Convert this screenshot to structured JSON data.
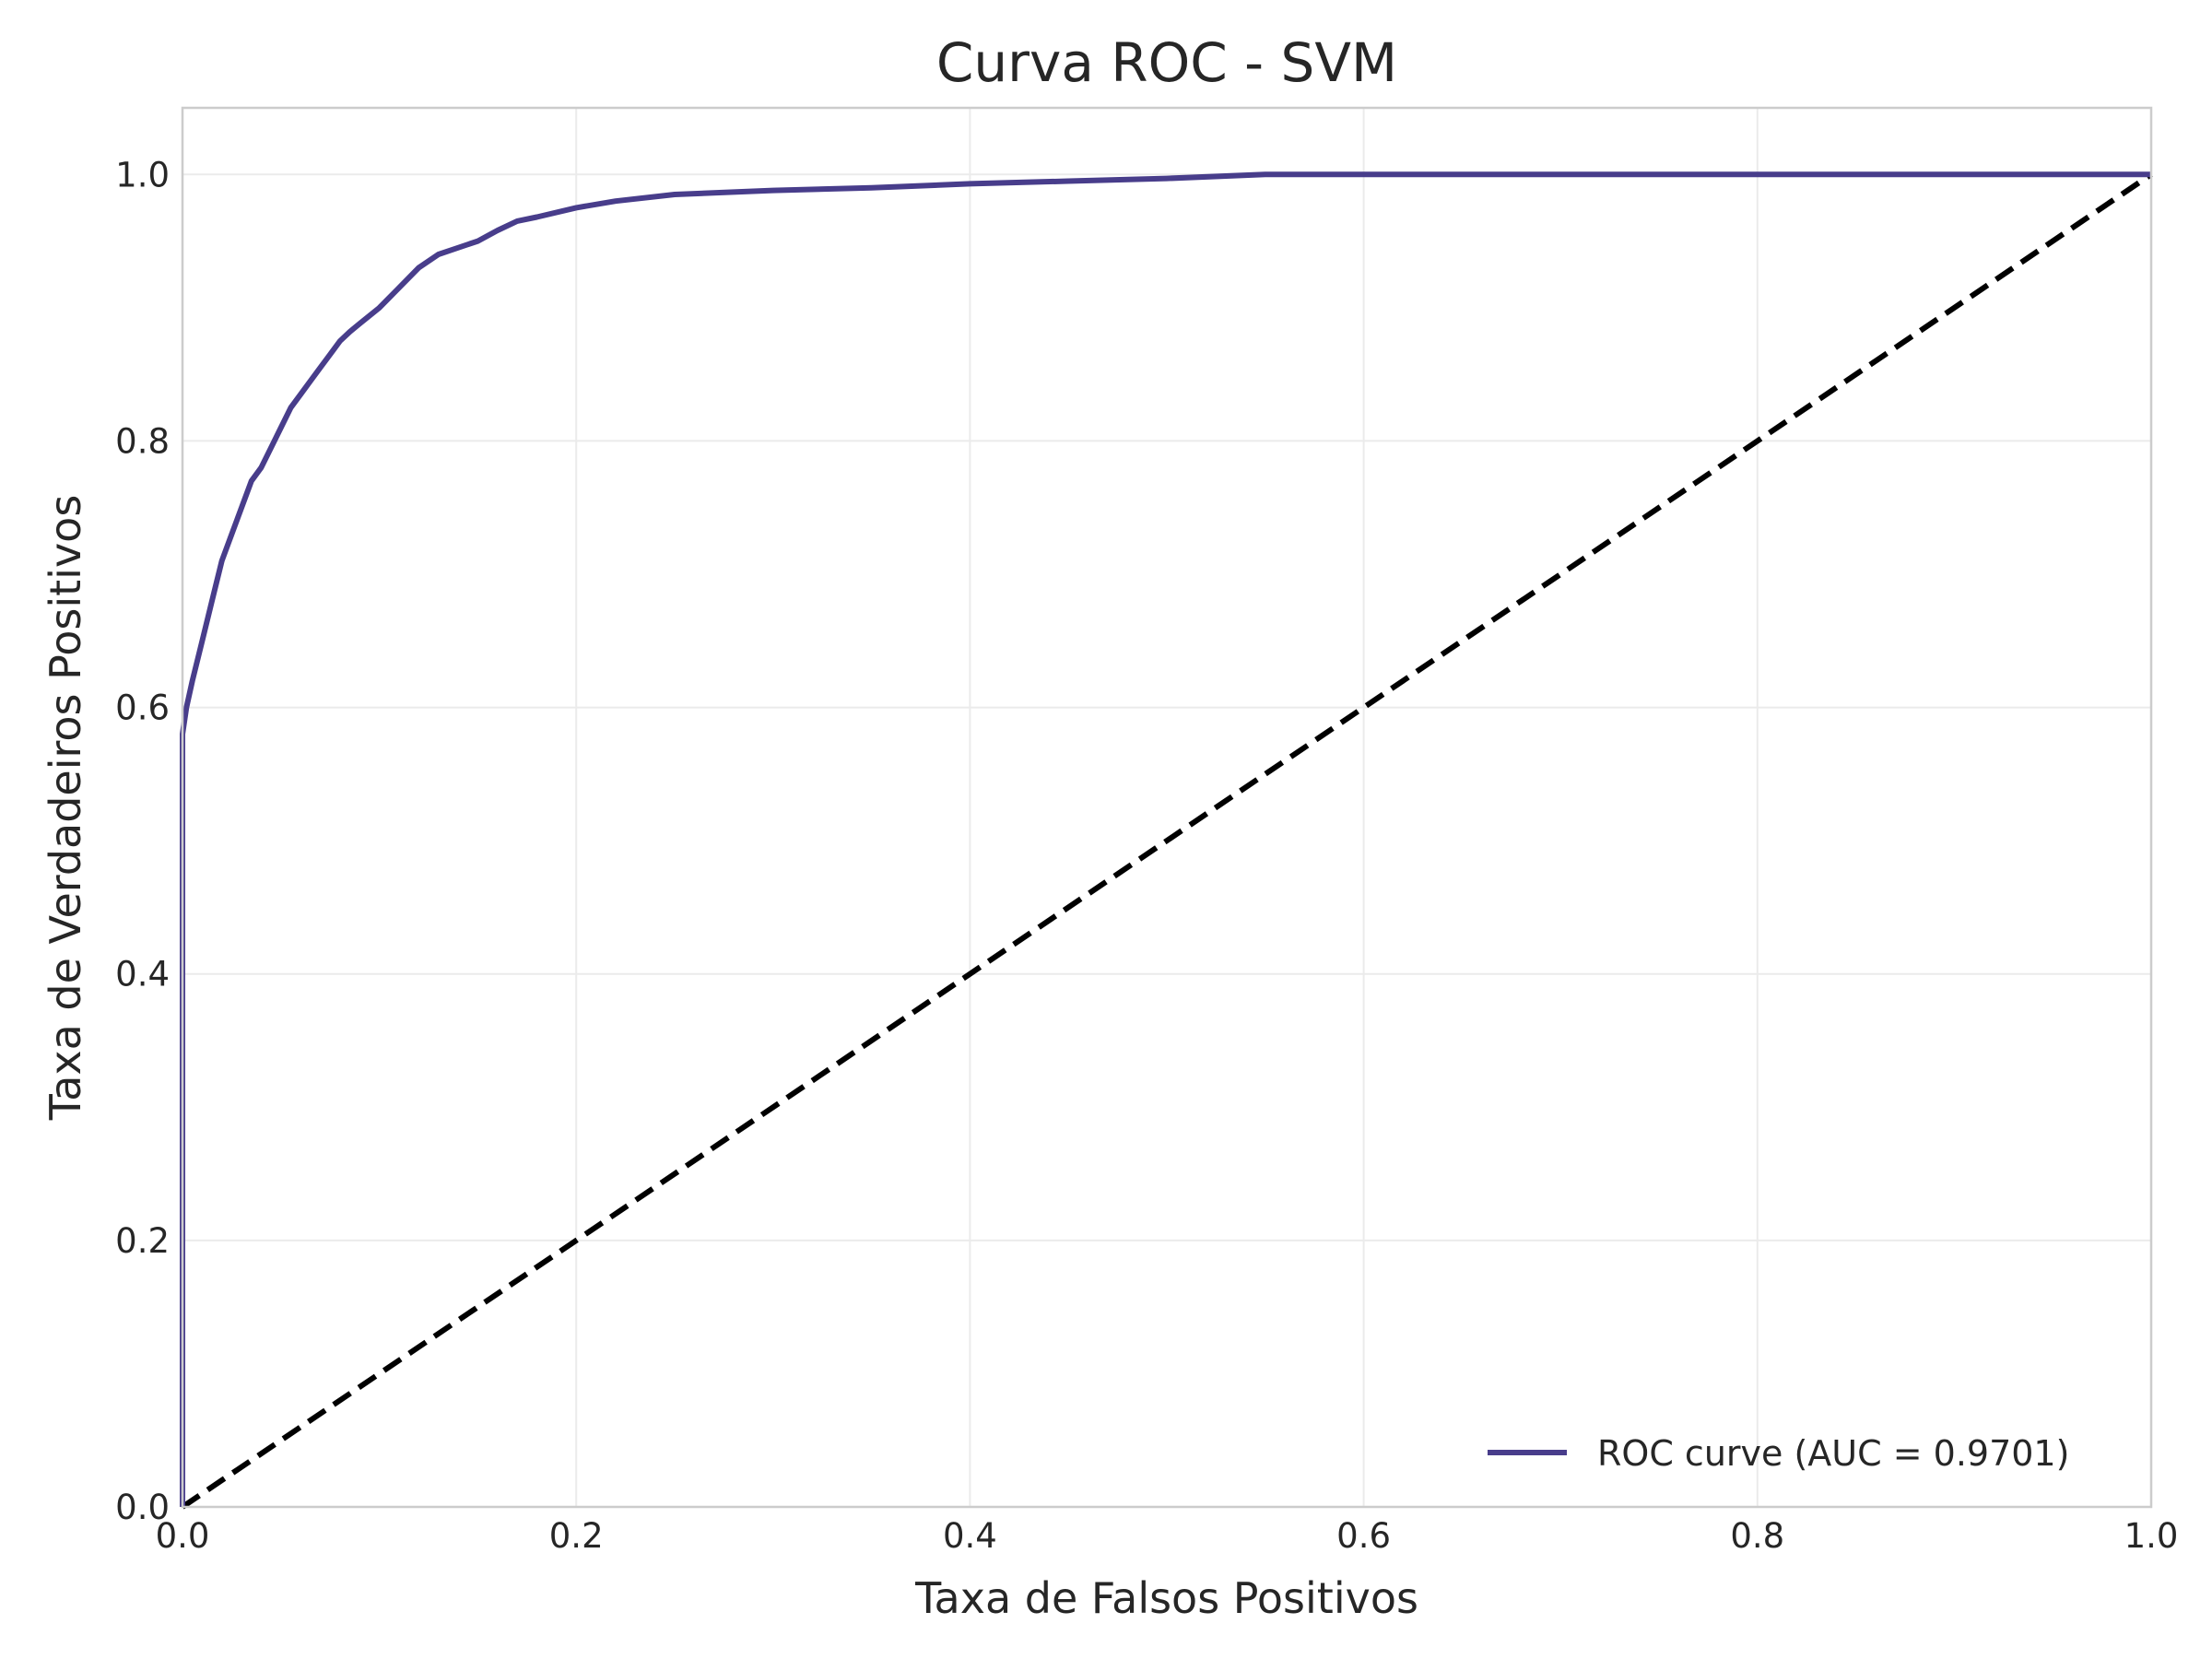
{
  "chart_data": {
    "type": "line",
    "title": "Curva ROC - SVM",
    "xlabel": "Taxa de Falsos Positivos",
    "ylabel": "Taxa de Verdadeiros Positivos",
    "xlim": [
      0.0,
      1.0
    ],
    "ylim": [
      0.0,
      1.05
    ],
    "xticks": [
      "0.0",
      "0.2",
      "0.4",
      "0.6",
      "0.8",
      "1.0"
    ],
    "yticks": [
      "0.0",
      "0.2",
      "0.4",
      "0.6",
      "0.8",
      "1.0"
    ],
    "grid": true,
    "legend_position": "lower-right",
    "series": [
      {
        "name": "ROC curve (AUC = 0.9701)",
        "color": "#483d8b",
        "style": "solid",
        "x": [
          0.0,
          0.0,
          0.002,
          0.005,
          0.01,
          0.015,
          0.02,
          0.025,
          0.03,
          0.035,
          0.04,
          0.045,
          0.05,
          0.055,
          0.06,
          0.065,
          0.07,
          0.075,
          0.08,
          0.085,
          0.09,
          0.1,
          0.11,
          0.12,
          0.13,
          0.14,
          0.15,
          0.16,
          0.17,
          0.18,
          0.2,
          0.22,
          0.25,
          0.3,
          0.35,
          0.4,
          0.45,
          0.5,
          0.55,
          0.6,
          0.8,
          1.0
        ],
        "y": [
          0.0,
          0.58,
          0.6,
          0.62,
          0.65,
          0.68,
          0.71,
          0.73,
          0.75,
          0.77,
          0.78,
          0.795,
          0.81,
          0.825,
          0.835,
          0.845,
          0.855,
          0.865,
          0.875,
          0.882,
          0.888,
          0.9,
          0.915,
          0.93,
          0.94,
          0.945,
          0.95,
          0.958,
          0.965,
          0.968,
          0.975,
          0.98,
          0.985,
          0.988,
          0.99,
          0.993,
          0.995,
          0.997,
          1.0,
          1.0,
          1.0,
          1.0
        ]
      },
      {
        "name": "",
        "color": "#000000",
        "style": "dashed",
        "x": [
          0.0,
          1.0
        ],
        "y": [
          0.0,
          1.0
        ]
      }
    ]
  }
}
